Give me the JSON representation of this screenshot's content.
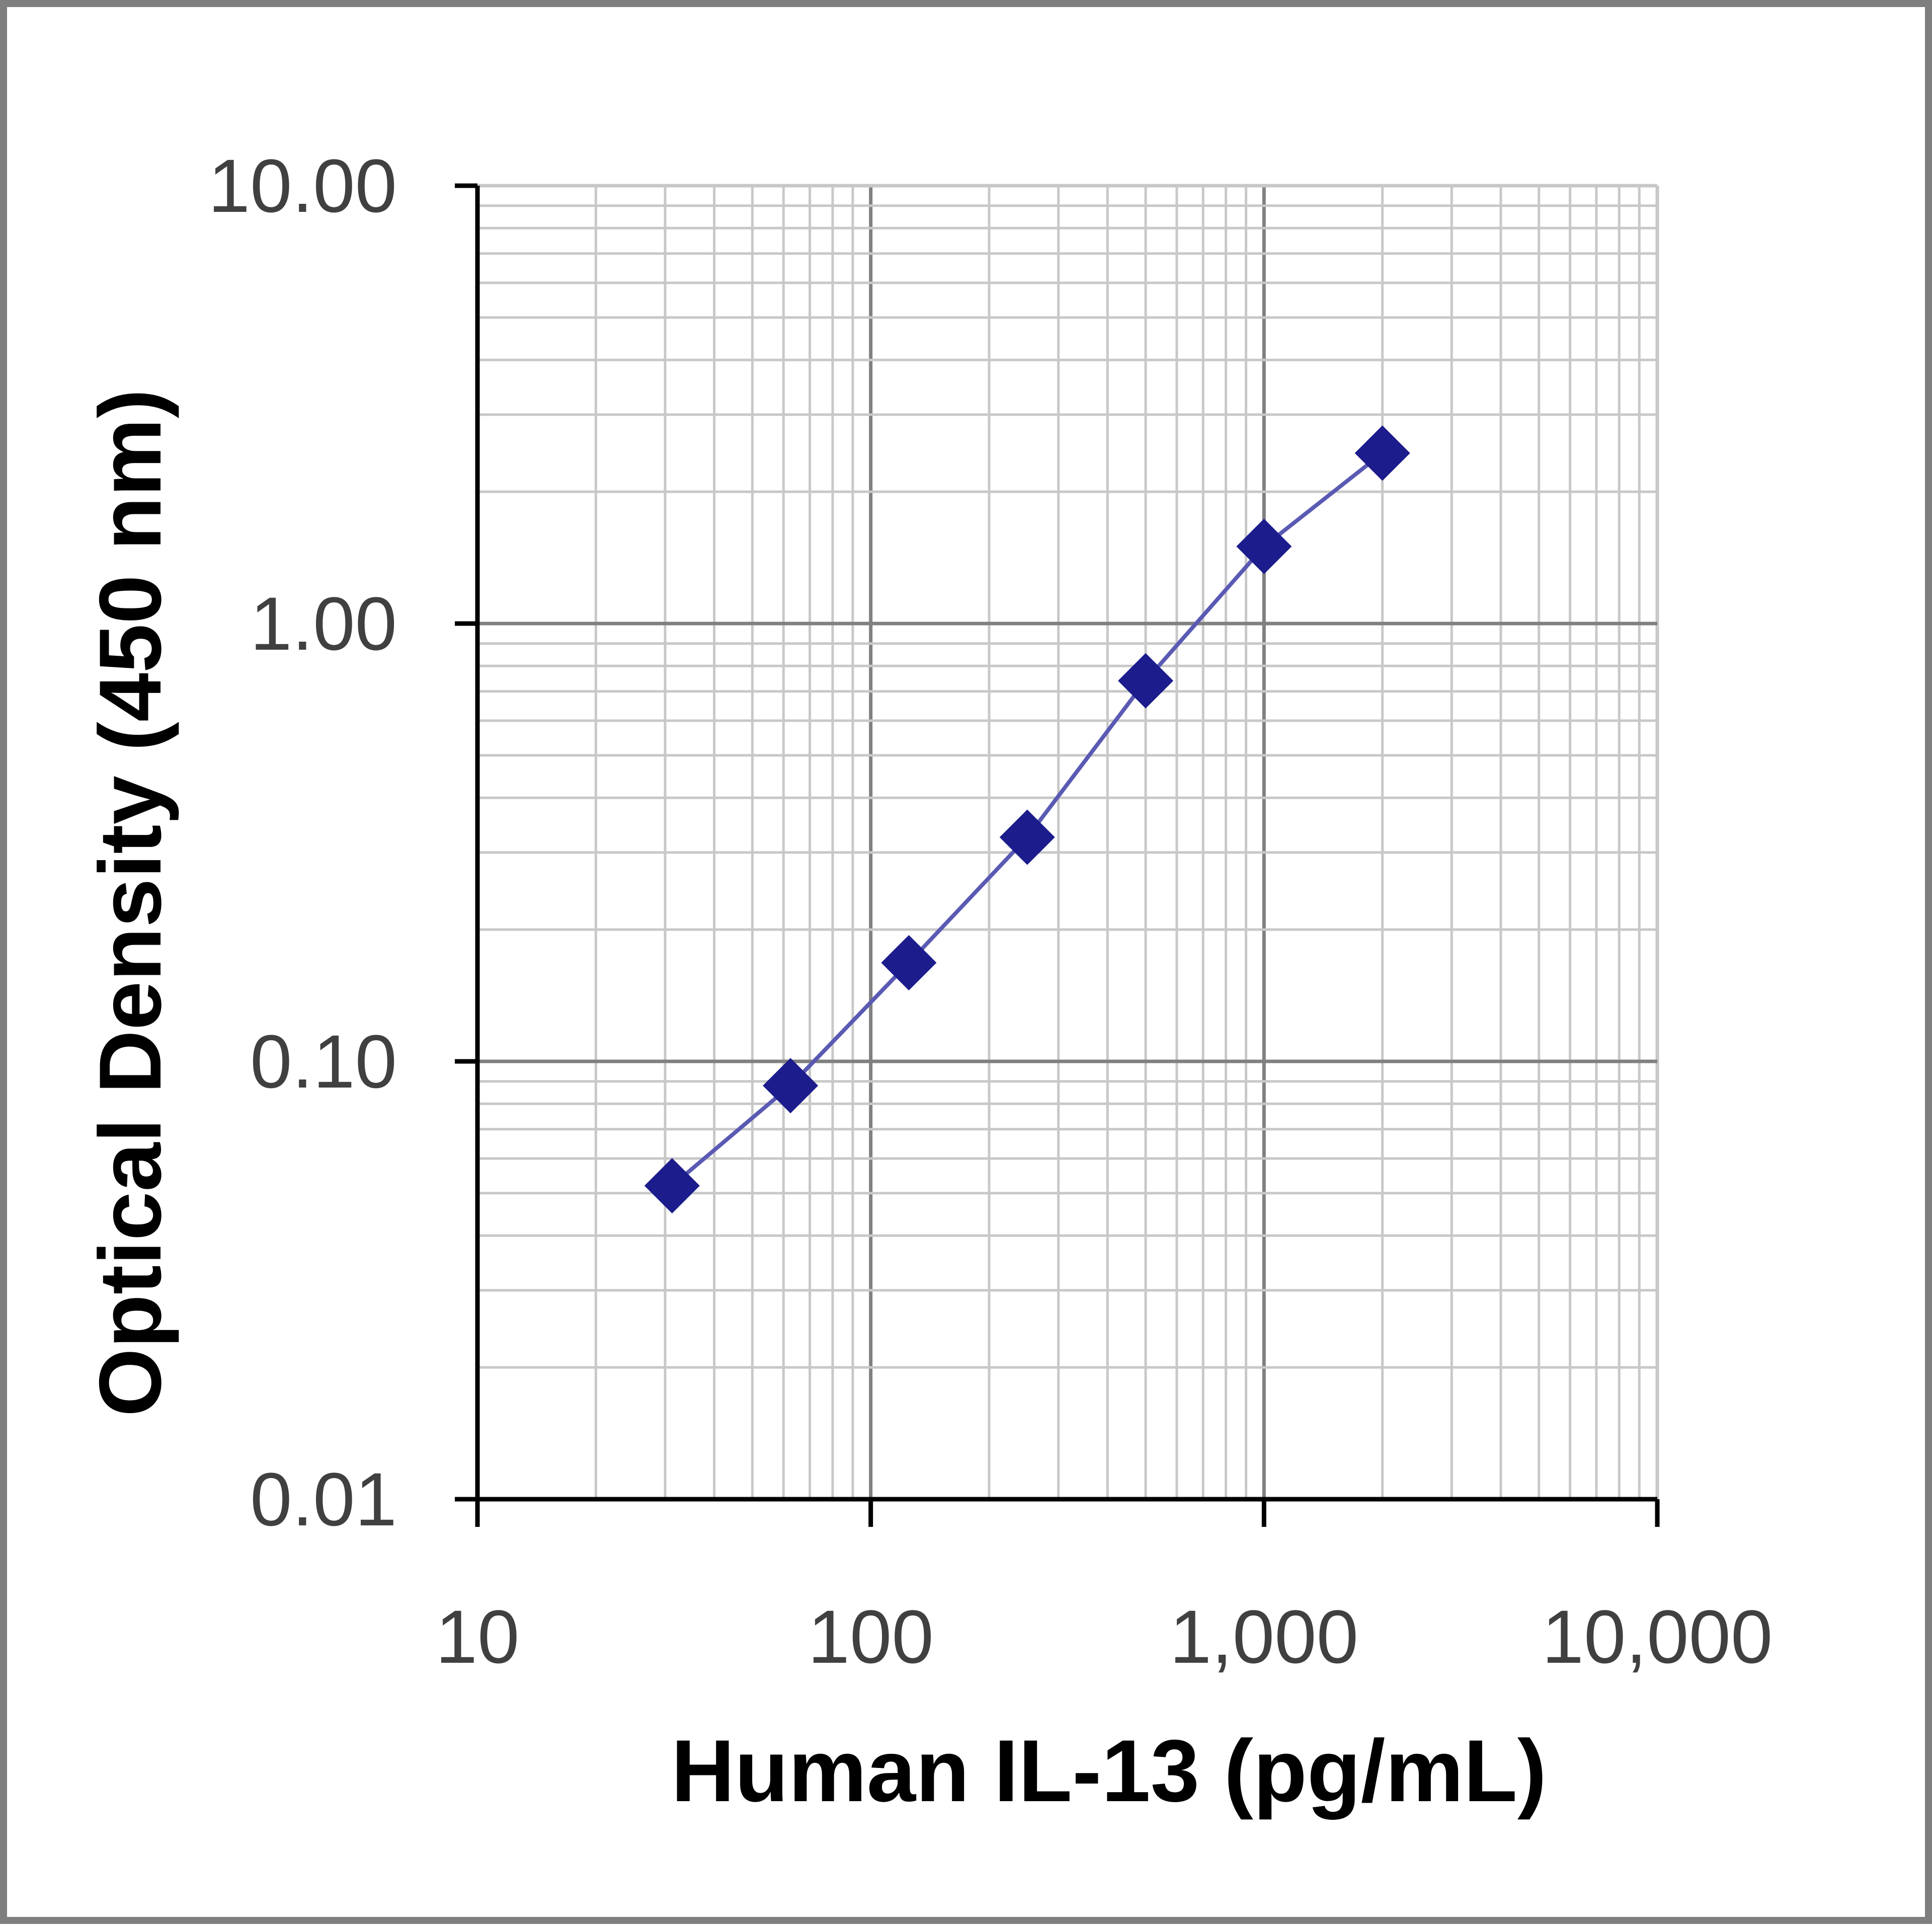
{
  "chart_data": {
    "type": "scatter",
    "title": "",
    "xlabel": "Human IL-13 (pg/mL)",
    "ylabel": "Optical Density (450 nm)",
    "x_scale": "log",
    "y_scale": "log",
    "xlim": [
      10,
      10000
    ],
    "ylim": [
      0.01,
      10
    ],
    "x_tick_labels": [
      "10",
      "100",
      "1,000",
      "10,000"
    ],
    "y_tick_labels": [
      "0.01",
      "0.10",
      "1.00",
      "10.00"
    ],
    "x_tick_values": [
      10,
      100,
      1000,
      10000
    ],
    "y_tick_values": [
      0.01,
      0.1,
      1,
      10
    ],
    "grid": true,
    "legend": "none",
    "colors": {
      "series": "#1c1c8c",
      "line": "#5a5ab4",
      "grid_major": "#808080",
      "grid_minor": "#c8c8c8",
      "axis": "#000000",
      "frame": "#7f7f7f"
    },
    "series": [
      {
        "x": [
          31.25,
          62.5,
          125,
          250,
          500,
          1000,
          2000
        ],
        "y": [
          0.052,
          0.088,
          0.168,
          0.325,
          0.74,
          1.5,
          2.45
        ]
      }
    ]
  }
}
